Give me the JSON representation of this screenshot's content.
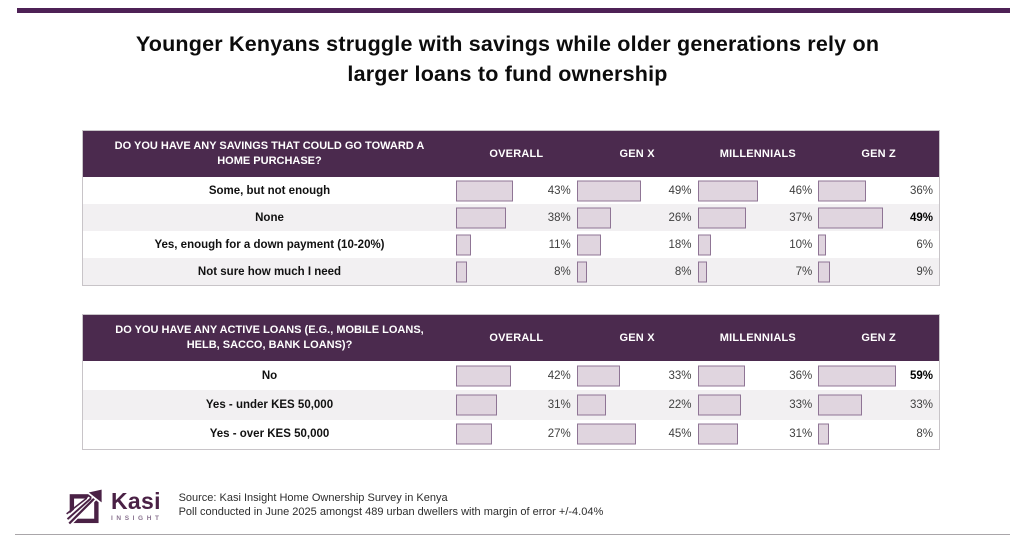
{
  "page": {
    "title_line1": "Younger Kenyans struggle with savings while older generations rely on",
    "title_line2": "larger loans to fund ownership"
  },
  "colors": {
    "top_line": "#4e2156",
    "header_bg": "#4b2a4e",
    "bar_fill": "#e0d5df",
    "bar_border": "#8f7595",
    "alt_row": "#f2f0f2",
    "brand": "#4a2145"
  },
  "tables": [
    {
      "question": "DO YOU HAVE ANY SAVINGS THAT COULD GO TOWARD A HOME PURCHASE?",
      "columns": [
        "OVERALL",
        "GEN X",
        "MILLENNIALS",
        "GEN Z"
      ],
      "unit": "%",
      "rows": [
        {
          "label": "Some, but not enough",
          "values": [
            43,
            49,
            46,
            36
          ],
          "bold_col": null
        },
        {
          "label": "None",
          "values": [
            38,
            26,
            37,
            49
          ],
          "bold_col": 3
        },
        {
          "label": "Yes, enough for a down payment (10-20%)",
          "values": [
            11,
            18,
            10,
            6
          ],
          "bold_col": null
        },
        {
          "label": "Not sure how much I need",
          "values": [
            8,
            8,
            7,
            9
          ],
          "bold_col": null
        }
      ]
    },
    {
      "question": "DO YOU HAVE ANY ACTIVE LOANS (E.G., MOBILE LOANS, HELB, SACCO, BANK LOANS)?",
      "columns": [
        "OVERALL",
        "GEN X",
        "MILLENNIALS",
        "GEN Z"
      ],
      "unit": "%",
      "rows": [
        {
          "label": "No",
          "values": [
            42,
            33,
            36,
            59
          ],
          "bold_col": 3
        },
        {
          "label": "Yes - under KES 50,000",
          "values": [
            31,
            22,
            33,
            33
          ],
          "bold_col": null
        },
        {
          "label": "Yes - over KES 50,000",
          "values": [
            27,
            45,
            31,
            8
          ],
          "bold_col": null
        }
      ]
    }
  ],
  "footer": {
    "logo_name": "Kasi",
    "logo_sub": "INSIGHT",
    "source_line1": "Source: Kasi Insight Home Ownership Survey in Kenya",
    "source_line2": "Poll conducted in June 2025 amongst  489  urban dwellers with margin of error +/-4.04%"
  },
  "chart_data": [
    {
      "type": "bar",
      "title": "DO YOU HAVE ANY SAVINGS THAT COULD GO TOWARD A HOME PURCHASE?",
      "categories": [
        "Some, but not enough",
        "None",
        "Yes, enough for a down payment (10-20%)",
        "Not sure how much I need"
      ],
      "series": [
        {
          "name": "OVERALL",
          "values": [
            43,
            38,
            11,
            8
          ]
        },
        {
          "name": "GEN X",
          "values": [
            49,
            26,
            18,
            8
          ]
        },
        {
          "name": "MILLENNIALS",
          "values": [
            46,
            37,
            10,
            7
          ]
        },
        {
          "name": "GEN Z",
          "values": [
            36,
            49,
            6,
            9
          ]
        }
      ],
      "unit": "%",
      "orientation": "horizontal",
      "highlighted": [
        {
          "category": "None",
          "series": "GEN Z",
          "value": 49
        }
      ]
    },
    {
      "type": "bar",
      "title": "DO YOU HAVE ANY ACTIVE LOANS (E.G., MOBILE LOANS, HELB, SACCO, BANK LOANS)?",
      "categories": [
        "No",
        "Yes - under KES 50,000",
        "Yes - over KES 50,000"
      ],
      "series": [
        {
          "name": "OVERALL",
          "values": [
            42,
            31,
            27
          ]
        },
        {
          "name": "GEN X",
          "values": [
            33,
            22,
            45
          ]
        },
        {
          "name": "MILLENNIALS",
          "values": [
            36,
            33,
            31
          ]
        },
        {
          "name": "GEN Z",
          "values": [
            59,
            33,
            8
          ]
        }
      ],
      "unit": "%",
      "orientation": "horizontal",
      "highlighted": [
        {
          "category": "No",
          "series": "GEN Z",
          "value": 59
        }
      ]
    }
  ]
}
